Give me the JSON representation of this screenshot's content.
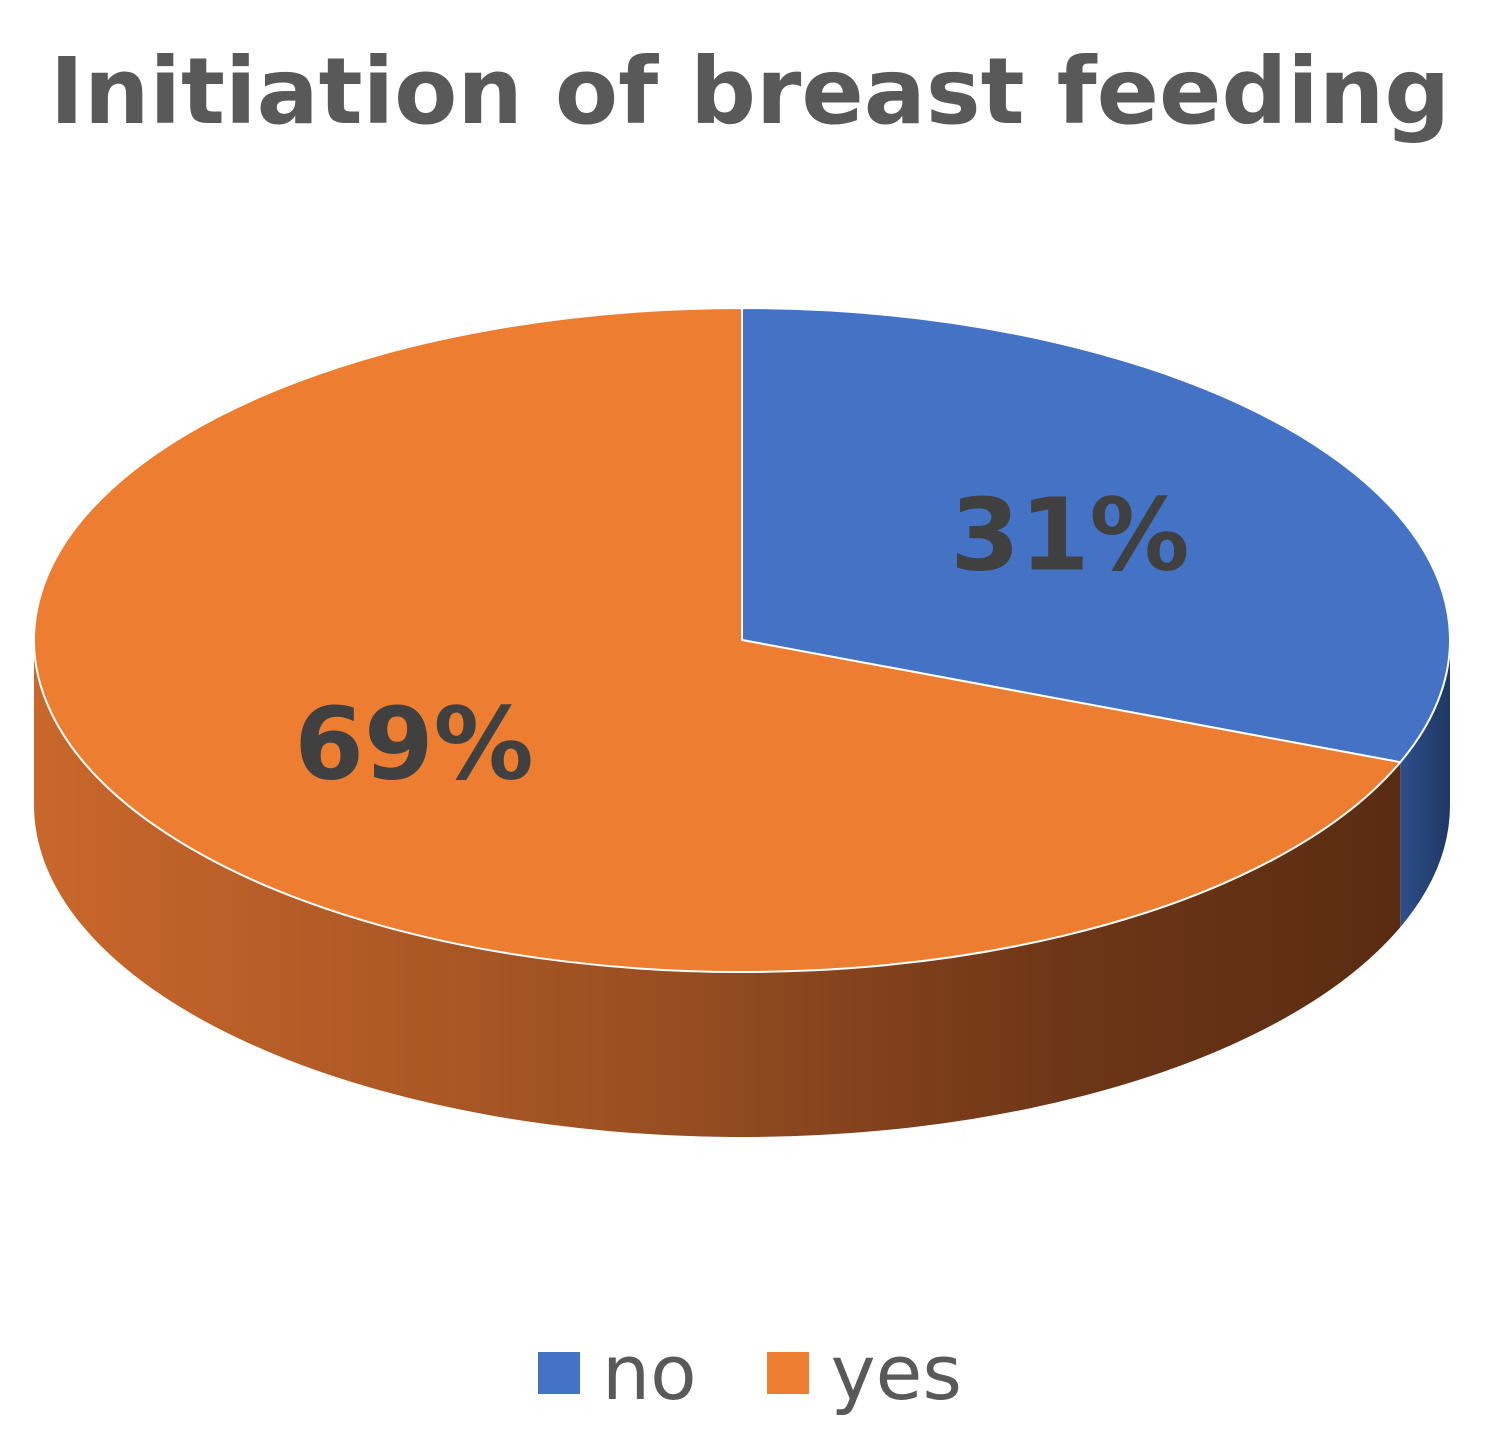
{
  "chart_data": {
    "type": "pie",
    "title": "Initiation of breast feeding",
    "categories": [
      "no",
      "yes"
    ],
    "values": [
      31,
      69
    ],
    "data_labels": [
      "31%",
      "69%"
    ],
    "colors": [
      "#4472C4",
      "#ED7D31"
    ],
    "style": "3d",
    "legend_position": "bottom"
  }
}
